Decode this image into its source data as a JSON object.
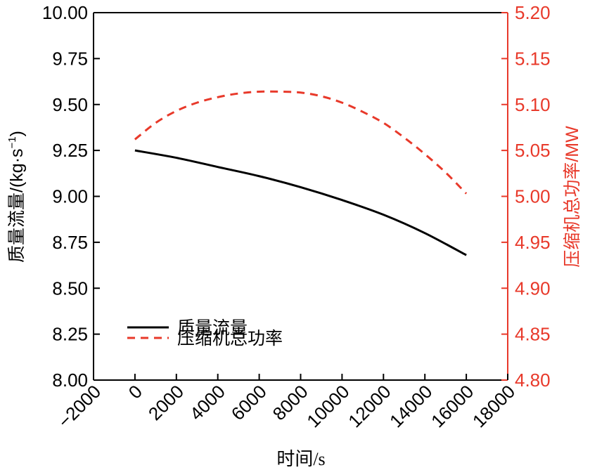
{
  "chart_data": {
    "type": "line",
    "xlabel": "时间/s",
    "ylabel_left": "质量流量/(kg·s",
    "ylabel_left_sup": "−1",
    "ylabel_left_close": ")",
    "ylabel_right": "压缩机总功率/MW",
    "xlim": [
      -2000,
      18000
    ],
    "ylim_left": [
      8.0,
      10.0
    ],
    "ylim_right": [
      4.8,
      5.2
    ],
    "x_ticks": [
      "−2000",
      "0",
      "2000",
      "4000",
      "6000",
      "8000",
      "10000",
      "12000",
      "14000",
      "16000",
      "18000"
    ],
    "y_left_ticks": [
      "8.00",
      "8.25",
      "8.50",
      "8.75",
      "9.00",
      "9.25",
      "9.50",
      "9.75",
      "10.00"
    ],
    "y_right_ticks": [
      "4.80",
      "4.85",
      "4.90",
      "4.95",
      "5.00",
      "5.05",
      "5.10",
      "5.15",
      "5.20"
    ],
    "grid": false,
    "legend_position": "lower-left",
    "series": [
      {
        "name": "质量流量",
        "axis": "left",
        "style": "solid",
        "color": "#000000",
        "x": [
          0,
          2000,
          4000,
          6000,
          8000,
          10000,
          12000,
          14000,
          16000
        ],
        "y": [
          9.25,
          9.21,
          9.16,
          9.11,
          9.05,
          8.98,
          8.9,
          8.8,
          8.68
        ]
      },
      {
        "name": "压缩机总功率",
        "axis": "right",
        "style": "dashed",
        "color": "#e8392a",
        "x": [
          0,
          1000,
          2000,
          3000,
          4000,
          5000,
          6000,
          7000,
          8000,
          9000,
          10000,
          11000,
          12000,
          13000,
          14000,
          15000,
          16000
        ],
        "y": [
          5.062,
          5.08,
          5.093,
          5.102,
          5.108,
          5.112,
          5.114,
          5.114,
          5.113,
          5.109,
          5.102,
          5.092,
          5.08,
          5.064,
          5.046,
          5.026,
          5.003
        ]
      }
    ],
    "colors": {
      "left_axis": "#000000",
      "right_axis": "#e8392a"
    }
  }
}
